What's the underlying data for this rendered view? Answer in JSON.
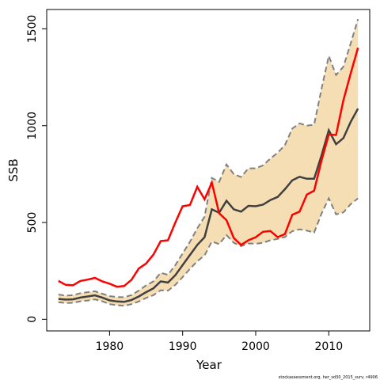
{
  "chart_data": {
    "type": "line",
    "title": "",
    "xlabel": "Year",
    "ylabel": "SSB",
    "xlim": [
      1971.4,
      2015.6
    ],
    "ylim": [
      -60,
      1600
    ],
    "x_ticks": [
      1980,
      1990,
      2000,
      2010
    ],
    "y_ticks": [
      0,
      500,
      1000,
      1500
    ],
    "grid": false,
    "legend": "none",
    "footnote": "stockassessment.org, her_sd30_2015_surv, r4906",
    "colors": {
      "band_fill": "#f5deb3",
      "band_edge": "#808080",
      "estimate": "#404040",
      "observed": "#ff0000"
    },
    "x": [
      1973,
      1974,
      1975,
      1976,
      1977,
      1978,
      1979,
      1980,
      1981,
      1982,
      1983,
      1984,
      1985,
      1986,
      1987,
      1988,
      1989,
      1990,
      1991,
      1992,
      1993,
      1994,
      1995,
      1996,
      1997,
      1998,
      1999,
      2000,
      2001,
      2002,
      2003,
      2004,
      2005,
      2006,
      2007,
      2008,
      2009,
      2010,
      2011,
      2012,
      2013,
      2014
    ],
    "series": [
      {
        "role": "estimate",
        "values": [
          105,
          102,
          103,
          112,
          118,
          124,
          112,
          98,
          92,
          90,
          100,
          118,
          140,
          160,
          196,
          190,
          228,
          280,
          332,
          384,
          424,
          568,
          550,
          612,
          568,
          556,
          586,
          584,
          592,
          616,
          632,
          672,
          718,
          736,
          726,
          726,
          846,
          976,
          904,
          936,
          1020,
          1088
        ]
      },
      {
        "role": "upper",
        "values": [
          128,
          122,
          125,
          135,
          140,
          145,
          132,
          120,
          115,
          114,
          125,
          148,
          175,
          196,
          240,
          230,
          280,
          340,
          400,
          470,
          530,
          730,
          710,
          800,
          750,
          735,
          780,
          780,
          795,
          830,
          860,
          900,
          985,
          1012,
          1000,
          1005,
          1190,
          1360,
          1262,
          1305,
          1425,
          1550
        ]
      },
      {
        "role": "lower",
        "values": [
          88,
          84,
          85,
          93,
          97,
          103,
          93,
          78,
          73,
          70,
          78,
          92,
          110,
          125,
          150,
          148,
          178,
          218,
          260,
          300,
          330,
          402,
          388,
          435,
          395,
          378,
          392,
          390,
          395,
          408,
          415,
          425,
          455,
          465,
          458,
          448,
          545,
          625,
          542,
          552,
          595,
          625
        ]
      },
      {
        "role": "observed",
        "values": [
          198,
          178,
          176,
          198,
          205,
          214,
          196,
          184,
          168,
          172,
          204,
          262,
          288,
          334,
          404,
          408,
          500,
          584,
          590,
          684,
          620,
          706,
          548,
          512,
          420,
          384,
          408,
          424,
          452,
          456,
          424,
          440,
          540,
          556,
          644,
          664,
          820,
          954,
          952,
          1132,
          1270,
          1402
        ]
      }
    ]
  }
}
